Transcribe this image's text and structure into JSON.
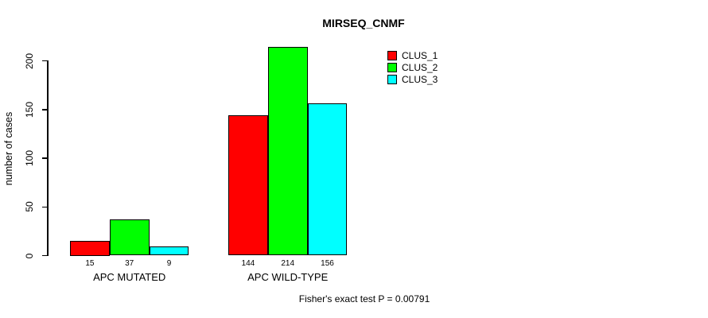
{
  "title": "MIRSEQ_CNMF",
  "footer": "Fisher's exact test P = 0.00791",
  "colors": {
    "clus_1": "#FF0000",
    "clus_2": "#00FF00",
    "clus_3": "#00FFFF",
    "axis": "#000000",
    "background": "#FFFFFF"
  },
  "chart_data": {
    "type": "bar",
    "title": "MIRSEQ_CNMF",
    "categories": [
      "APC MUTATED",
      "APC WILD-TYPE"
    ],
    "series": [
      {
        "name": "CLUS_1",
        "color": "#FF0000",
        "values": [
          15,
          144
        ]
      },
      {
        "name": "CLUS_2",
        "color": "#00FF00",
        "values": [
          37,
          214
        ]
      },
      {
        "name": "CLUS_3",
        "color": "#00FFFF",
        "values": [
          9,
          156
        ]
      }
    ],
    "bar_value_labels": [
      [
        15,
        37,
        9
      ],
      [
        144,
        214,
        156
      ]
    ],
    "xlabel": "",
    "ylabel": "number of cases",
    "ylim": [
      0,
      200
    ],
    "yticks": [
      0,
      50,
      100,
      150,
      200
    ],
    "grid": false,
    "legend_position": "top-right",
    "legend_entries": [
      "CLUS_1",
      "CLUS_2",
      "CLUS_3"
    ],
    "annotation": "Fisher's exact test P = 0.00791"
  }
}
